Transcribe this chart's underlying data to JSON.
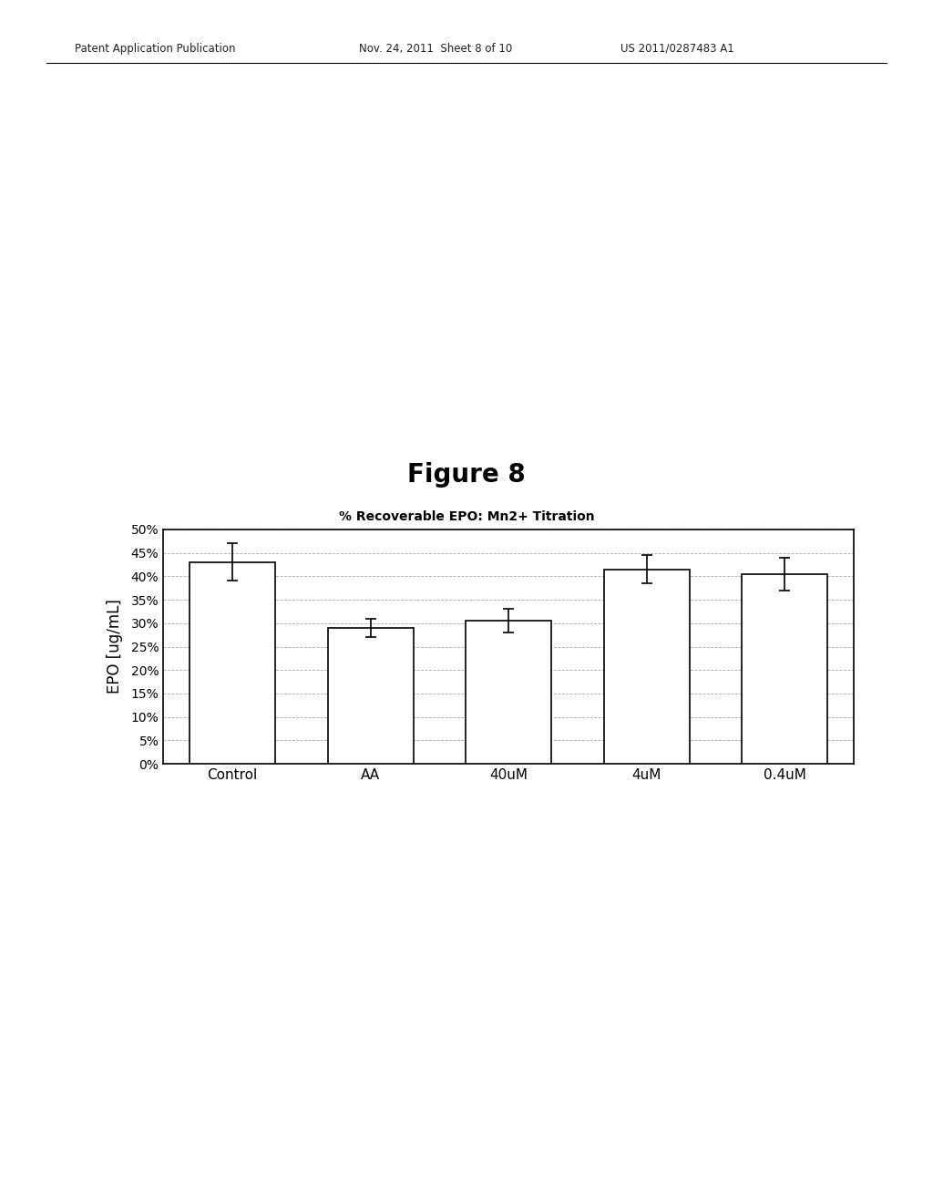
{
  "title": "Figure 8",
  "chart_title": "% Recoverable EPO: Mn2+ Titration",
  "ylabel": "EPO [ug/mL]",
  "categories": [
    "Control",
    "AA",
    "40uM",
    "4uM",
    "0.4uM"
  ],
  "values": [
    0.43,
    0.29,
    0.305,
    0.415,
    0.405
  ],
  "errors": [
    0.04,
    0.02,
    0.025,
    0.03,
    0.035
  ],
  "ylim": [
    0,
    0.5
  ],
  "yticks": [
    0.0,
    0.05,
    0.1,
    0.15,
    0.2,
    0.25,
    0.3,
    0.35,
    0.4,
    0.45,
    0.5
  ],
  "yticklabels": [
    "0%",
    "5%",
    "10%",
    "15%",
    "20%",
    "25%",
    "30%",
    "35%",
    "40%",
    "45%",
    "50%"
  ],
  "bar_color": "#ffffff",
  "bar_edgecolor": "#000000",
  "background_color": "#ffffff",
  "header_left": "Patent Application Publication",
  "header_mid": "Nov. 24, 2011  Sheet 8 of 10",
  "header_right": "US 2011/0287483 A1",
  "figure_width": 10.24,
  "figure_height": 13.2,
  "dpi": 100
}
